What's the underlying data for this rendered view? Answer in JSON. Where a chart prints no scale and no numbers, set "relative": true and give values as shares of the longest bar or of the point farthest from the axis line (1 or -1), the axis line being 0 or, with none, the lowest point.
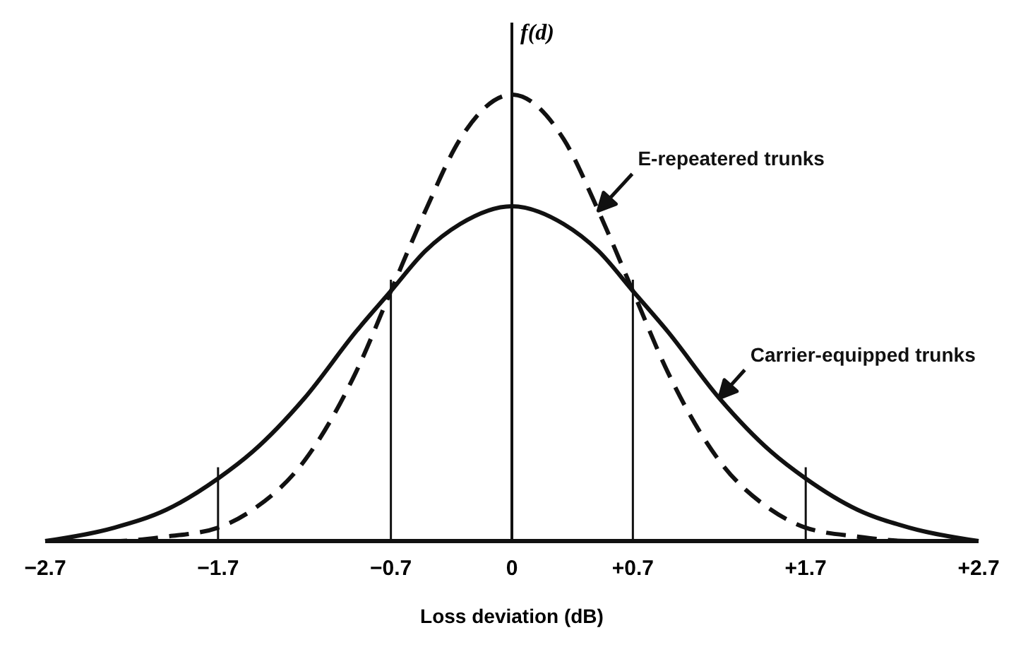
{
  "chart_data": {
    "type": "line",
    "relative": true,
    "xlabel": "Loss deviation (dB)",
    "ylabel": "f(d)",
    "xlim": [
      -2.7,
      2.7
    ],
    "xticks": [
      {
        "value": -2.7,
        "label": "−2.7"
      },
      {
        "value": -1.7,
        "label": "−1.7"
      },
      {
        "value": -0.7,
        "label": "−0.7"
      },
      0,
      {
        "value": 0.7,
        "label": "+0.7"
      },
      {
        "value": 1.7,
        "label": "+1.7"
      },
      {
        "value": 2.7,
        "label": "+2.7"
      }
    ],
    "x": [
      -2.7,
      -2.3,
      -2.0,
      -1.7,
      -1.5,
      -1.2,
      -0.9,
      -0.7,
      -0.5,
      -0.3,
      0,
      0.3,
      0.5,
      0.7,
      0.9,
      1.2,
      1.5,
      1.7,
      2.0,
      2.3,
      2.7
    ],
    "series": [
      {
        "name": "Carrier-equipped trunks",
        "color": "#111111",
        "line_style": "solid",
        "values": [
          0,
          0.03,
          0.07,
          0.14,
          0.2,
          0.32,
          0.47,
          0.56,
          0.65,
          0.71,
          0.75,
          0.71,
          0.65,
          0.56,
          0.47,
          0.32,
          0.2,
          0.14,
          0.07,
          0.03,
          0
        ]
      },
      {
        "name": "E-repeatered trunks",
        "color": "#111111",
        "line_style": "dashed",
        "values": [
          0,
          0,
          0.01,
          0.03,
          0.07,
          0.18,
          0.38,
          0.56,
          0.74,
          0.9,
          1,
          0.9,
          0.74,
          0.56,
          0.38,
          0.18,
          0.07,
          0.03,
          0.01,
          0,
          0
        ]
      }
    ],
    "ref_lines": [
      {
        "axis": "x",
        "value": -1.7
      },
      {
        "axis": "x",
        "value": -0.7
      },
      {
        "axis": "x",
        "value": 0.7
      },
      {
        "axis": "x",
        "value": 1.7
      }
    ],
    "tick_labels": "x"
  }
}
